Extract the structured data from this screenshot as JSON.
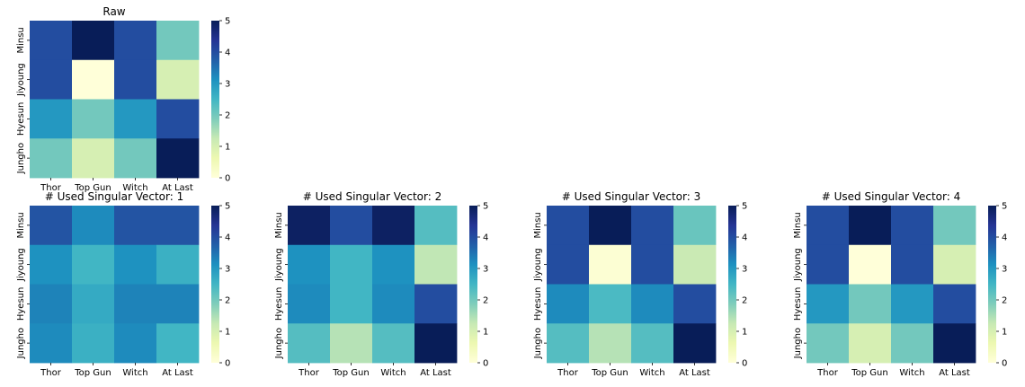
{
  "colormap": [
    "#ffffd9",
    "#edf8b1",
    "#c7e9b4",
    "#7fcdbb",
    "#41b6c4",
    "#1d91c0",
    "#225ea8",
    "#253494",
    "#081d58"
  ],
  "colorbar": {
    "min": 0,
    "max": 5,
    "ticks": [
      "0",
      "1",
      "2",
      "3",
      "4",
      "5"
    ]
  },
  "chart_data": [
    {
      "type": "heatmap",
      "title": "Raw",
      "x_labels": [
        "Thor",
        "Top Gun",
        "Witch",
        "At Last"
      ],
      "y_labels": [
        "Minsu",
        "Jiyoung",
        "Hyesun",
        "Jungho"
      ],
      "values": [
        [
          4,
          5,
          4,
          2
        ],
        [
          4,
          0,
          4,
          1
        ],
        [
          3,
          2,
          3,
          4
        ],
        [
          2,
          1,
          2,
          5
        ]
      ],
      "vmin": 0,
      "vmax": 5
    },
    {
      "type": "heatmap",
      "title": "# Used Singular Vector: 1",
      "x_labels": [
        "Thor",
        "Top Gun",
        "Witch",
        "At Last"
      ],
      "y_labels": [
        "Minsu",
        "Jiyoung",
        "Hyesun",
        "Jungho"
      ],
      "values": [
        [
          3.9,
          3.2,
          3.9,
          3.9
        ],
        [
          3.1,
          2.5,
          3.1,
          2.6
        ],
        [
          3.3,
          2.7,
          3.3,
          3.3
        ],
        [
          3.2,
          2.6,
          3.2,
          2.5
        ]
      ],
      "vmin": 0,
      "vmax": 5
    },
    {
      "type": "heatmap",
      "title": "# Used Singular Vector: 2",
      "x_labels": [
        "Thor",
        "Top Gun",
        "Witch",
        "At Last"
      ],
      "y_labels": [
        "Minsu",
        "Jiyoung",
        "Hyesun",
        "Jungho"
      ],
      "values": [
        [
          4.9,
          4.0,
          4.9,
          2.3
        ],
        [
          3.1,
          2.5,
          3.1,
          1.3
        ],
        [
          3.2,
          2.5,
          3.2,
          4.0
        ],
        [
          2.3,
          1.4,
          2.3,
          5.0
        ]
      ],
      "vmin": 0,
      "vmax": 5
    },
    {
      "type": "heatmap",
      "title": "# Used Singular Vector: 3",
      "x_labels": [
        "Thor",
        "Top Gun",
        "Witch",
        "At Last"
      ],
      "y_labels": [
        "Minsu",
        "Jiyoung",
        "Hyesun",
        "Jungho"
      ],
      "values": [
        [
          4.0,
          5.0,
          4.0,
          2.1
        ],
        [
          4.0,
          0.1,
          4.0,
          1.2
        ],
        [
          3.2,
          2.4,
          3.2,
          4.0
        ],
        [
          2.3,
          1.4,
          2.3,
          5.0
        ]
      ],
      "vmin": 0,
      "vmax": 5
    },
    {
      "type": "heatmap",
      "title": "# Used Singular Vector: 4",
      "x_labels": [
        "Thor",
        "Top Gun",
        "Witch",
        "At Last"
      ],
      "y_labels": [
        "Minsu",
        "Jiyoung",
        "Hyesun",
        "Jungho"
      ],
      "values": [
        [
          4,
          5,
          4,
          2
        ],
        [
          4,
          0,
          4,
          1
        ],
        [
          3,
          2,
          3,
          4
        ],
        [
          2,
          1,
          2,
          5
        ]
      ],
      "vmin": 0,
      "vmax": 5
    }
  ]
}
